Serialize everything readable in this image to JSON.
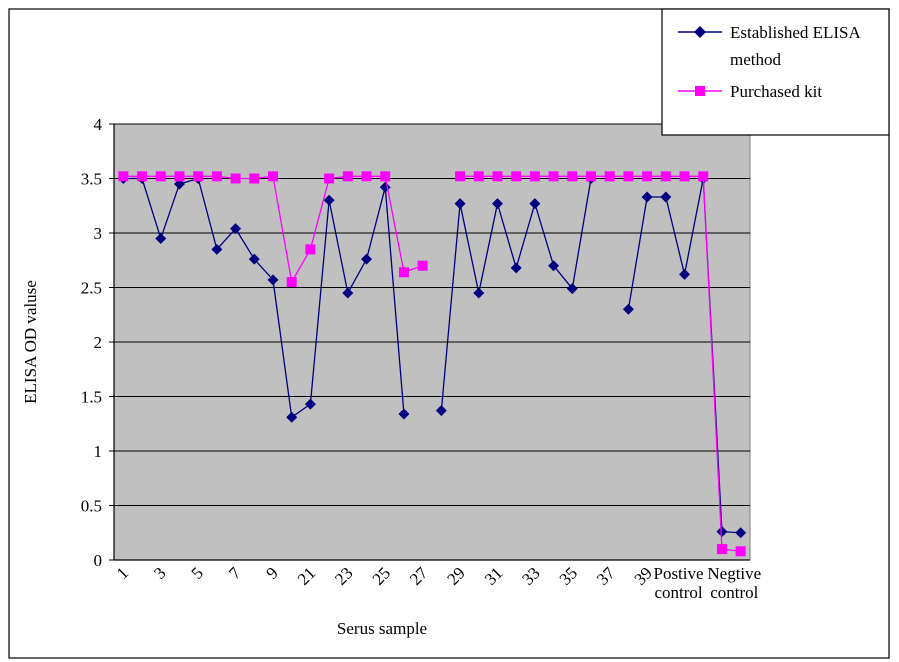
{
  "chart_data": {
    "type": "line",
    "title": "",
    "xlabel": "Serus sample",
    "ylabel": "ELISA OD valuse",
    "ylim": [
      0,
      4
    ],
    "yticks": [
      "0",
      "0.5",
      "1",
      "1.5",
      "2",
      "2.5",
      "3",
      "3.5",
      "4"
    ],
    "grid": true,
    "legend_position": "top-right",
    "background_color": "#c0c0c0",
    "x_tick_labels": [
      "1",
      "3",
      "5",
      "7",
      "9",
      "21",
      "23",
      "25",
      "27",
      "29",
      "31",
      "33",
      "35",
      "37",
      "39",
      "Postive control",
      "Negtive control"
    ],
    "series": [
      {
        "name": "Established ELISA method",
        "color": "#000080",
        "marker": "diamond",
        "values": [
          3.5,
          3.5,
          2.95,
          3.45,
          3.5,
          2.85,
          3.04,
          2.76,
          2.57,
          1.31,
          1.43,
          3.3,
          2.45,
          2.76,
          3.42,
          1.34,
          null,
          1.37,
          3.27,
          2.45,
          3.27,
          2.68,
          3.27,
          2.7,
          2.49,
          3.5,
          null,
          2.3,
          3.33,
          3.33,
          2.62,
          3.5,
          0.26,
          0.25
        ]
      },
      {
        "name": "Purchased kit",
        "color": "#ff00ff",
        "marker": "square",
        "values": [
          3.52,
          3.52,
          3.52,
          3.52,
          3.52,
          3.52,
          3.5,
          3.5,
          3.52,
          2.55,
          2.85,
          3.5,
          3.52,
          3.52,
          3.52,
          2.64,
          2.7,
          null,
          3.52,
          3.52,
          3.52,
          3.52,
          3.52,
          3.52,
          3.52,
          3.52,
          3.52,
          3.52,
          3.52,
          3.52,
          3.52,
          3.52,
          0.1,
          0.08
        ]
      }
    ]
  }
}
